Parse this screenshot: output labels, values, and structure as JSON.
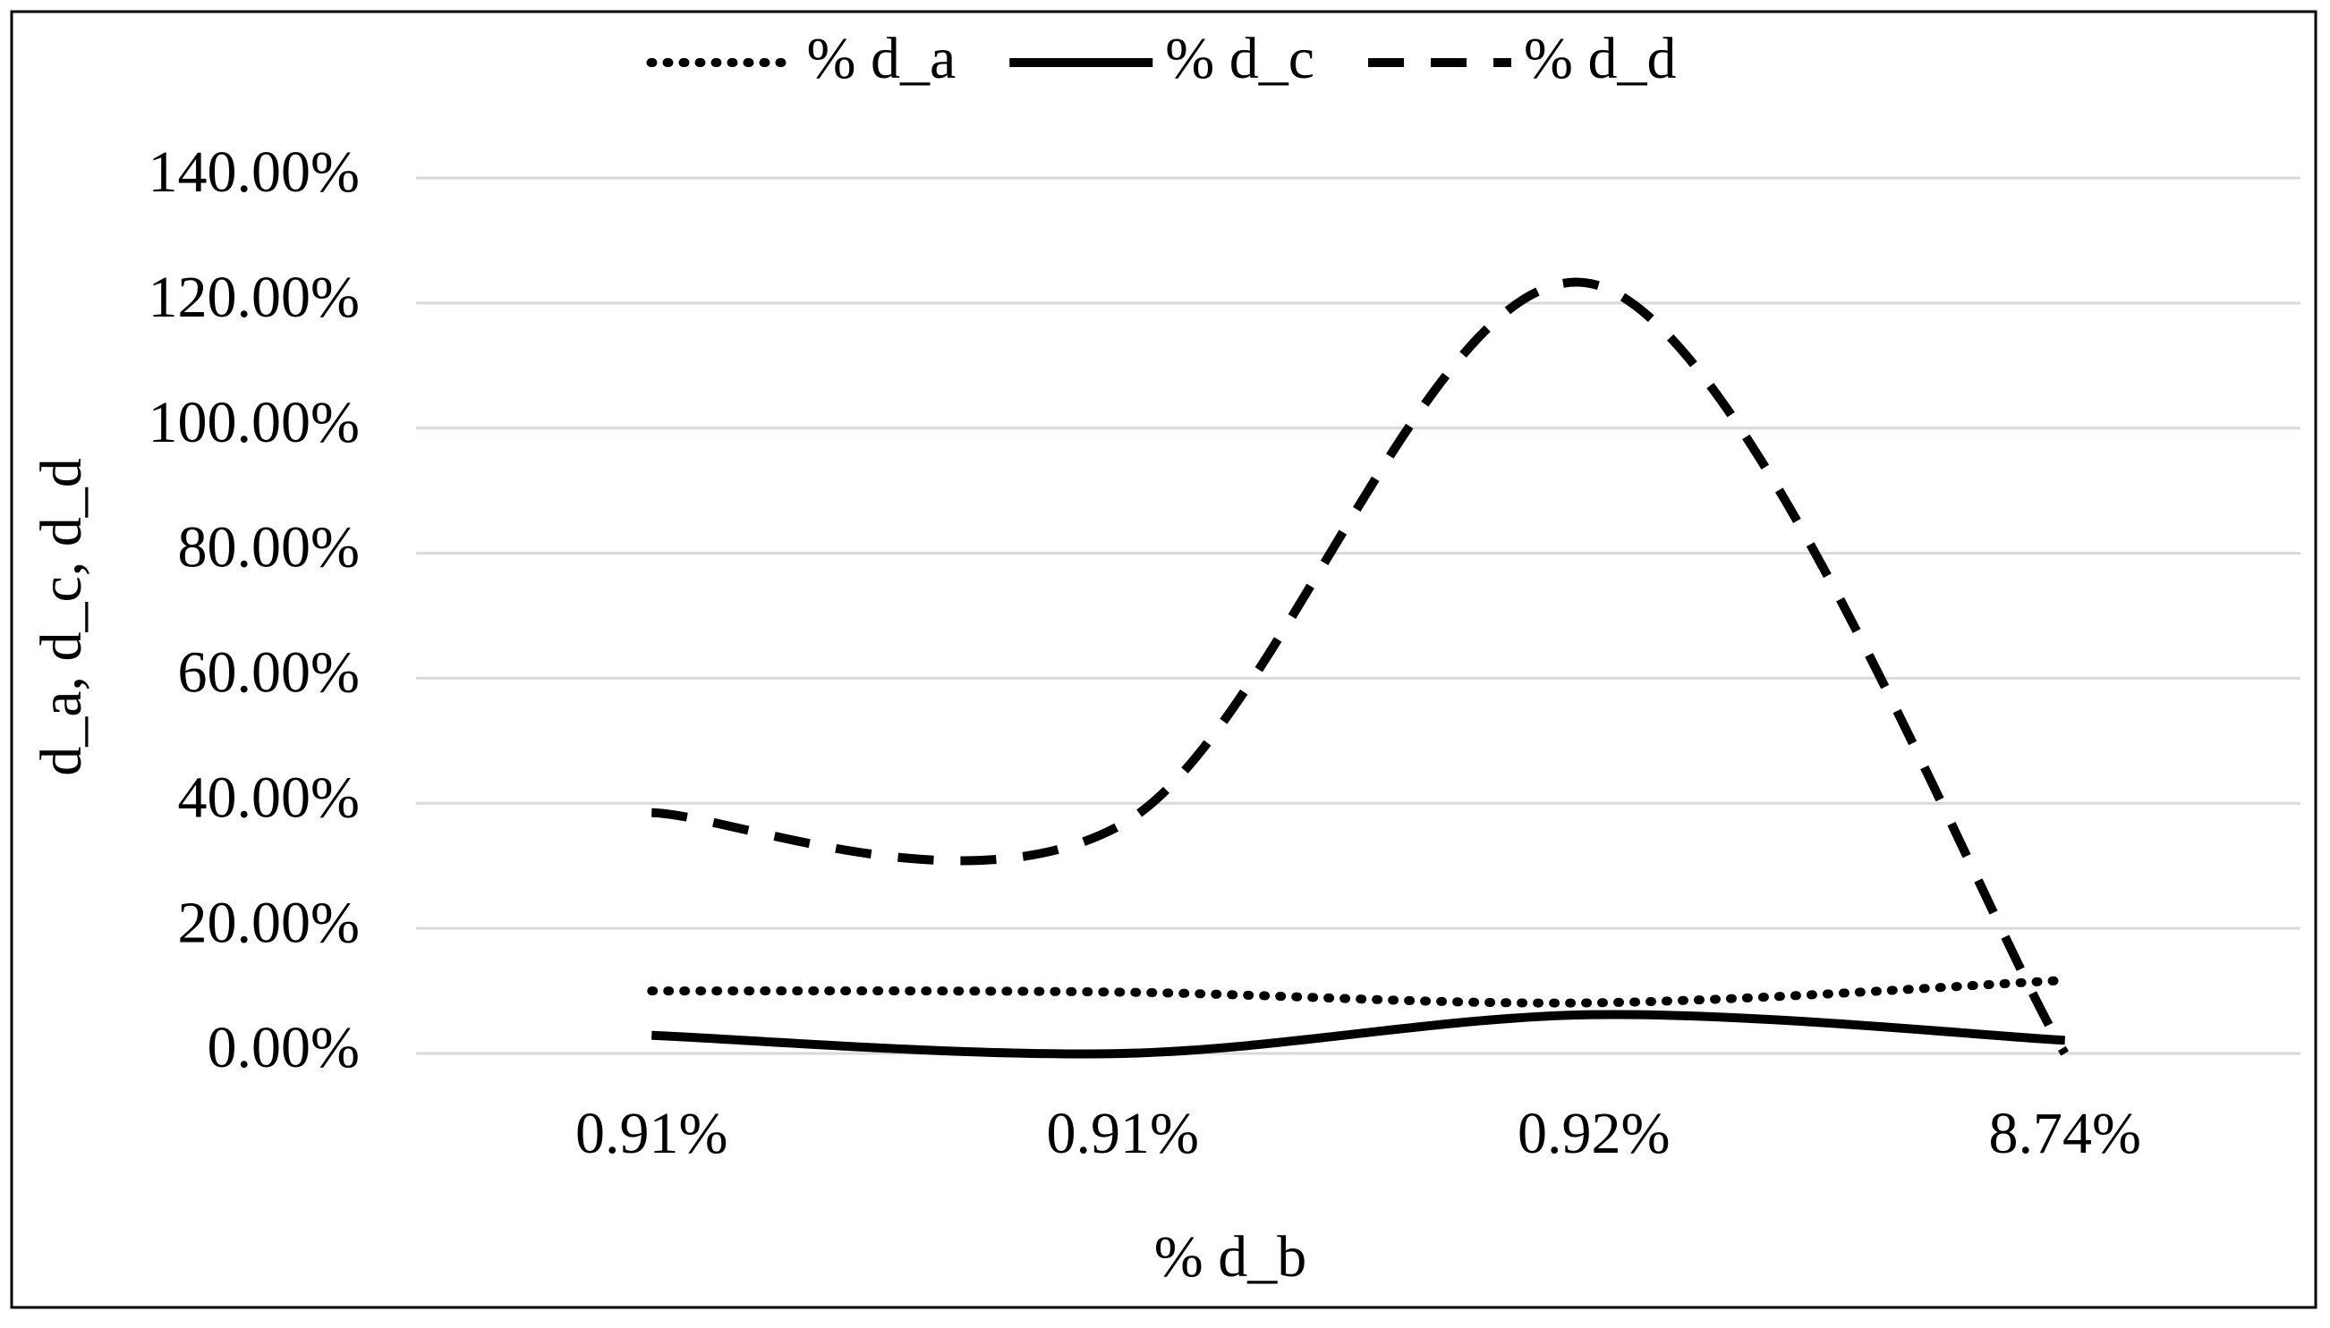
{
  "chart_data": {
    "type": "line",
    "smooth": true,
    "x_label": "% d_b",
    "y_label": "d_a, d_c, d_d",
    "categories": [
      "0.91%",
      "0.91%",
      "0.92%",
      "8.74%"
    ],
    "series": [
      {
        "name": "% d_a",
        "color": "#000000",
        "dash": "dotted",
        "values": [
          10,
          9.8,
          8.1,
          11.7
        ]
      },
      {
        "name": "% d_c",
        "color": "#000000",
        "dash": "solid",
        "values": [
          2.9,
          0,
          6.2,
          2.1
        ]
      },
      {
        "name": "% d_d",
        "color": "#000000",
        "dash": "dashed",
        "values": [
          38.5,
          36.7,
          123,
          0
        ]
      }
    ],
    "ylim": [
      0,
      140
    ],
    "yticks": [
      {
        "value": 0,
        "label": "0.00%"
      },
      {
        "value": 20,
        "label": "20.00%"
      },
      {
        "value": 40,
        "label": "40.00%"
      },
      {
        "value": 60,
        "label": "60.00%"
      },
      {
        "value": 80,
        "label": "80.00%"
      },
      {
        "value": 100,
        "label": "100.00%"
      },
      {
        "value": 120,
        "label": "120.00%"
      },
      {
        "value": 140,
        "label": "140.00%"
      }
    ],
    "grid": true,
    "legend": "top"
  }
}
